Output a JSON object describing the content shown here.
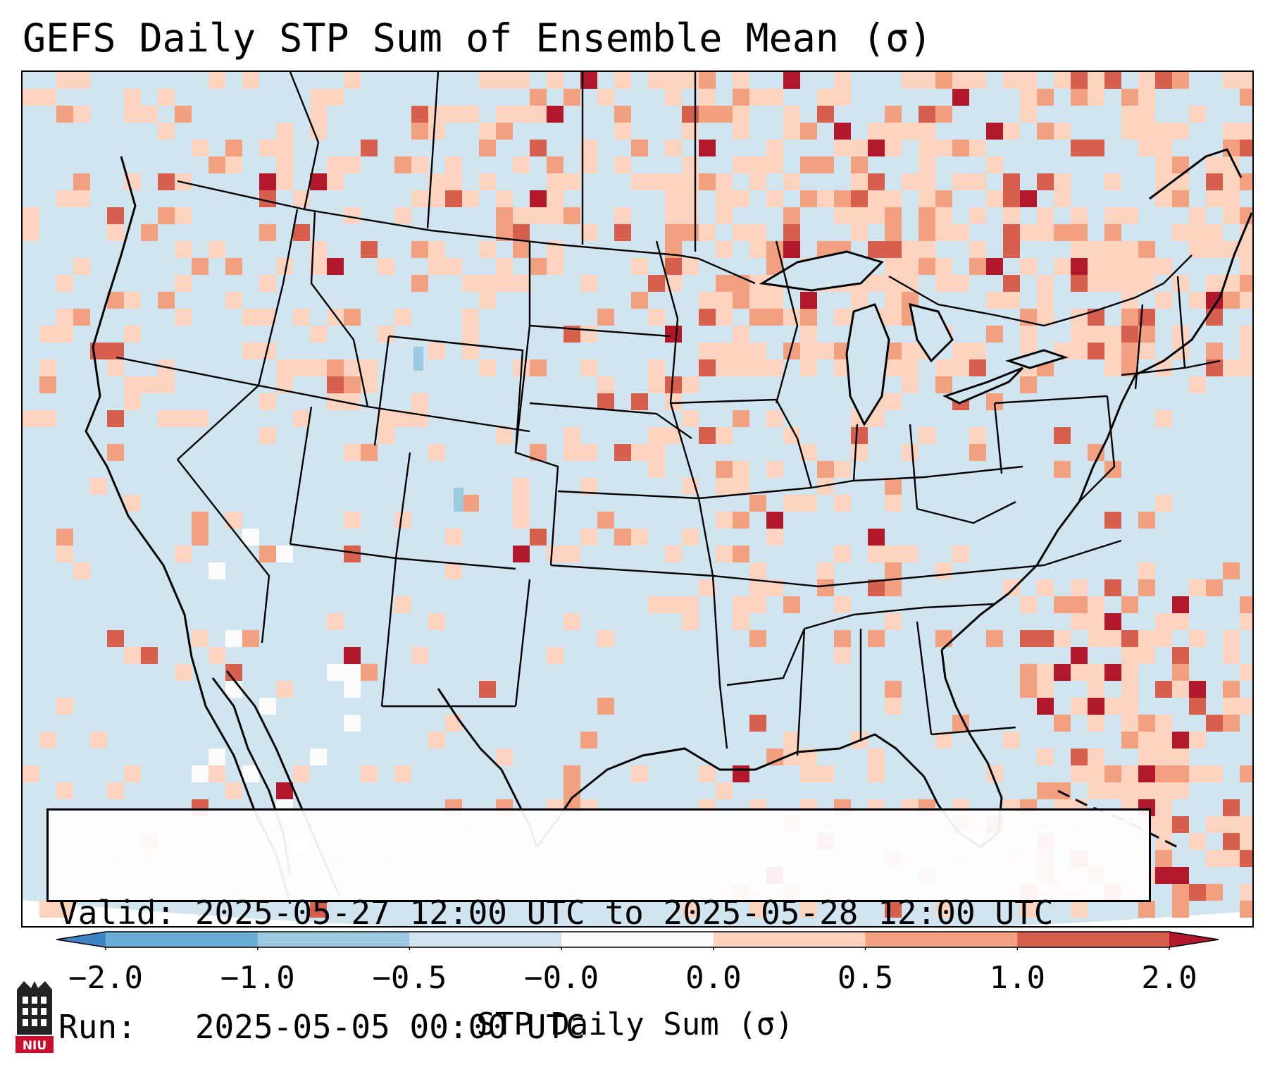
{
  "title": "GEFS Daily STP Sum of Ensemble Mean (σ)",
  "info": {
    "valid_line": "Valid: 2025-05-27 12:00 UTC to 2025-05-28 12:00 UTC",
    "run_line": "Run:   2025-05-05 00:00 UTC"
  },
  "colorbar": {
    "label": "STP Daily Sum (σ)",
    "ticks": [
      "−2.0",
      "−1.0",
      "−0.5",
      "−0.0",
      "0.0",
      "0.5",
      "1.0",
      "2.0"
    ],
    "colors": [
      "#3d85c0",
      "#6aaed6",
      "#9ecae1",
      "#d1e5f0",
      "#fbfbfb",
      "#fcd3be",
      "#f2a07f",
      "#d6604d",
      "#b2182b"
    ]
  },
  "logo": {
    "icon": "niu-logo-icon",
    "text": "NIU"
  },
  "colors": {
    "background_field": "#d1e5f0",
    "near_zero": "#fbfbfb",
    "light_red": "#fcd3be",
    "mid_red": "#f2a07f",
    "red": "#d6604d",
    "dark_red": "#b2182b",
    "light_blue": "#9ecae1"
  }
}
